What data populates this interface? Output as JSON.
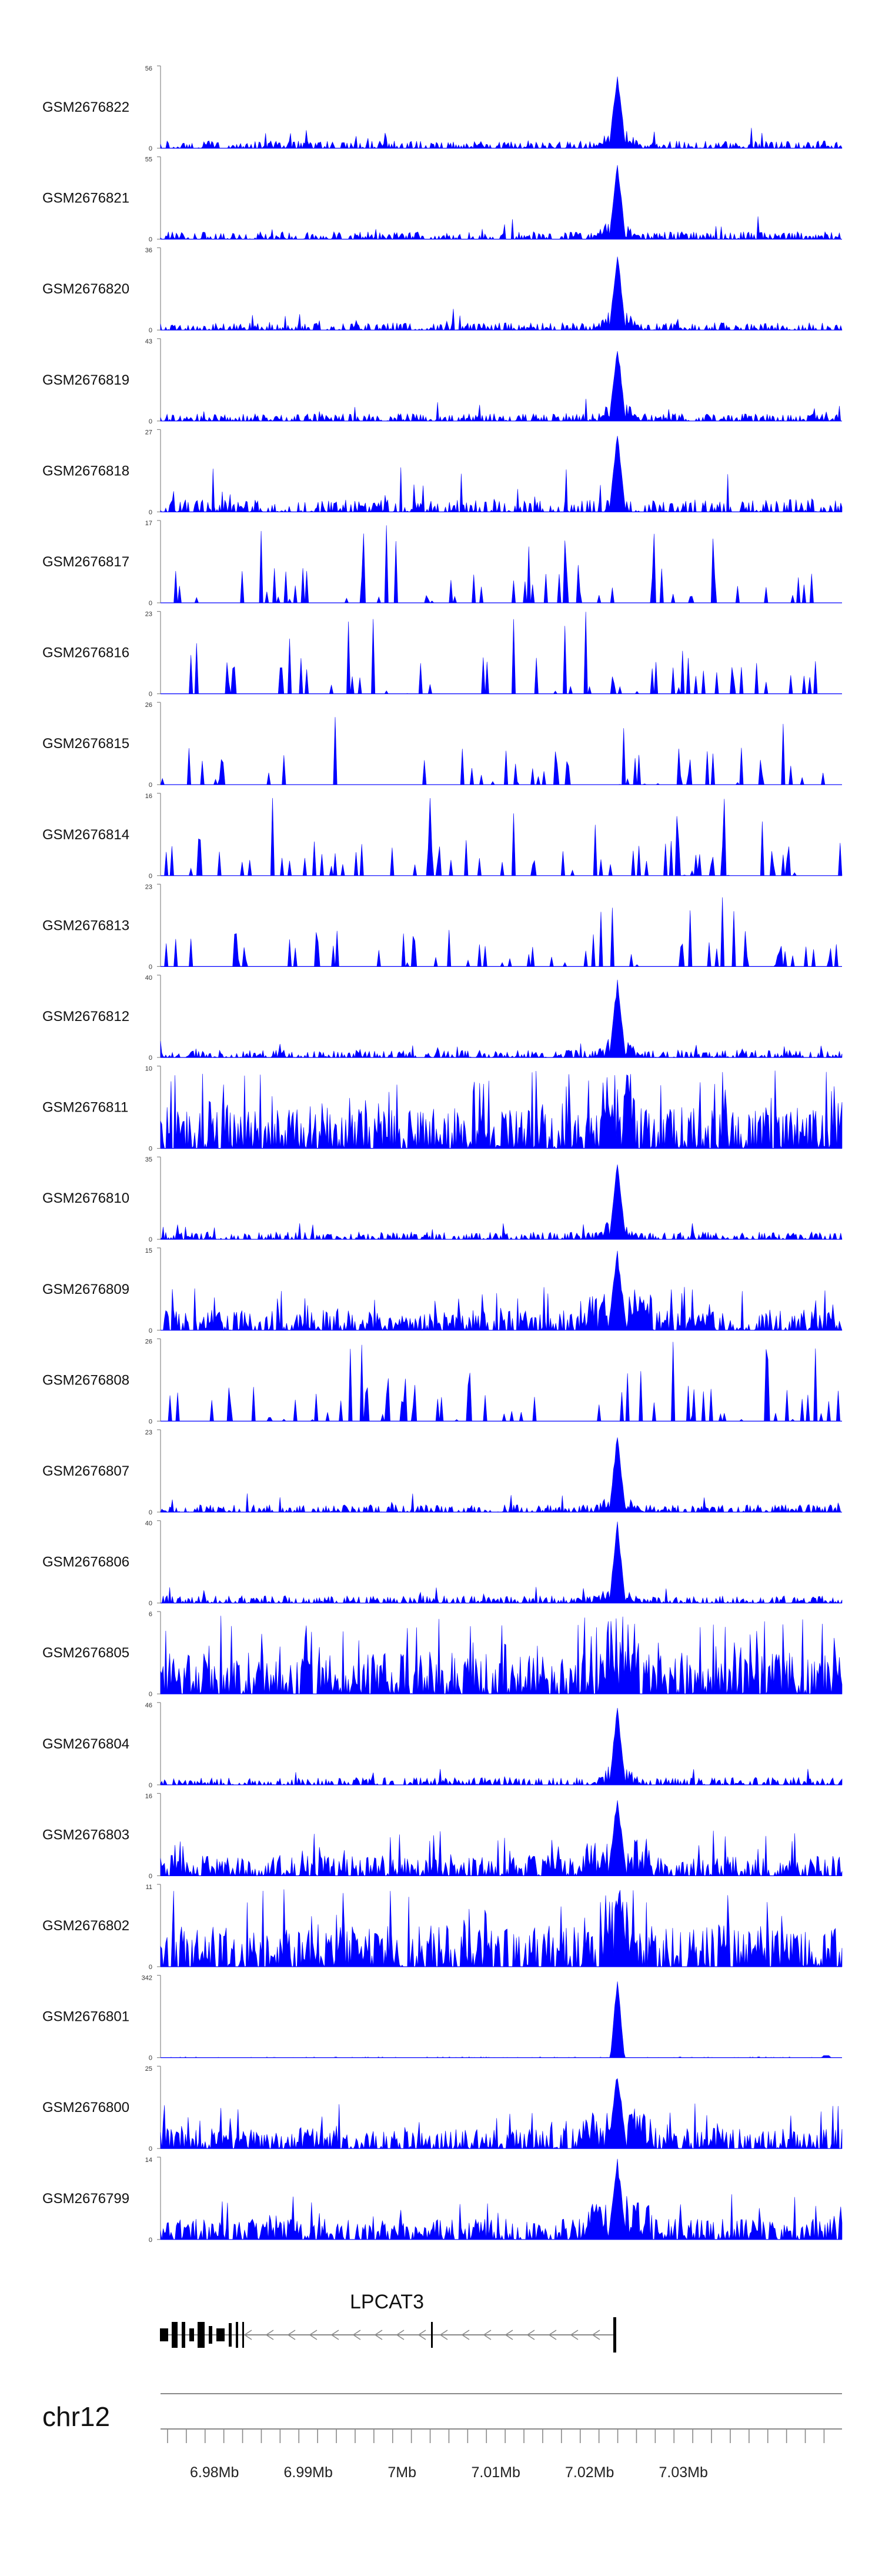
{
  "chart_data": {
    "type": "area",
    "colors": {
      "signal": "#0000ff",
      "axis": "#888888",
      "gene": "#000000"
    },
    "tracks": [
      {
        "name": "GSM2676822",
        "ymax": 56,
        "ymin": 0,
        "profile": "peak"
      },
      {
        "name": "GSM2676821",
        "ymax": 55,
        "ymin": 0,
        "profile": "peak"
      },
      {
        "name": "GSM2676820",
        "ymax": 36,
        "ymin": 0,
        "profile": "peak"
      },
      {
        "name": "GSM2676819",
        "ymax": 43,
        "ymin": 0,
        "profile": "peak"
      },
      {
        "name": "GSM2676818",
        "ymax": 27,
        "ymin": 0,
        "profile": "peak-spiky"
      },
      {
        "name": "GSM2676817",
        "ymax": 17,
        "ymin": 0,
        "profile": "sparse"
      },
      {
        "name": "GSM2676816",
        "ymax": 23,
        "ymin": 0,
        "profile": "sparse"
      },
      {
        "name": "GSM2676815",
        "ymax": 26,
        "ymin": 0,
        "profile": "sparse"
      },
      {
        "name": "GSM2676814",
        "ymax": 16,
        "ymin": 0,
        "profile": "sparse"
      },
      {
        "name": "GSM2676813",
        "ymax": 23,
        "ymin": 0,
        "profile": "sparse"
      },
      {
        "name": "GSM2676812",
        "ymax": 40,
        "ymin": 0,
        "profile": "peak"
      },
      {
        "name": "GSM2676811",
        "ymax": 10,
        "ymin": 0,
        "profile": "dense"
      },
      {
        "name": "GSM2676810",
        "ymax": 35,
        "ymin": 0,
        "profile": "peak"
      },
      {
        "name": "GSM2676809",
        "ymax": 15,
        "ymin": 0,
        "profile": "peak-dense"
      },
      {
        "name": "GSM2676808",
        "ymax": 26,
        "ymin": 0,
        "profile": "sparse"
      },
      {
        "name": "GSM2676807",
        "ymax": 23,
        "ymin": 0,
        "profile": "peak"
      },
      {
        "name": "GSM2676806",
        "ymax": 40,
        "ymin": 0,
        "profile": "peak"
      },
      {
        "name": "GSM2676805",
        "ymax": 6,
        "ymin": 0,
        "profile": "dense"
      },
      {
        "name": "GSM2676804",
        "ymax": 46,
        "ymin": 0,
        "profile": "peak"
      },
      {
        "name": "GSM2676803",
        "ymax": 16,
        "ymin": 0,
        "profile": "peak-dense"
      },
      {
        "name": "GSM2676802",
        "ymax": 11,
        "ymin": 0,
        "profile": "dense"
      },
      {
        "name": "GSM2676801",
        "ymax": 342,
        "ymin": 0,
        "profile": "single-peak"
      },
      {
        "name": "GSM2676800",
        "ymax": 25,
        "ymin": 0,
        "profile": "peak-dense"
      },
      {
        "name": "GSM2676799",
        "ymax": 14,
        "ymin": 0,
        "profile": "peak-dense"
      }
    ],
    "gene": {
      "name": "LPCAT3",
      "strand": "-"
    },
    "chromosome": "chr12",
    "x_axis": {
      "ticks": [
        "6.98Mb",
        "6.99Mb",
        "7Mb",
        "7.01Mb",
        "7.02Mb",
        "7.03Mb"
      ]
    }
  }
}
